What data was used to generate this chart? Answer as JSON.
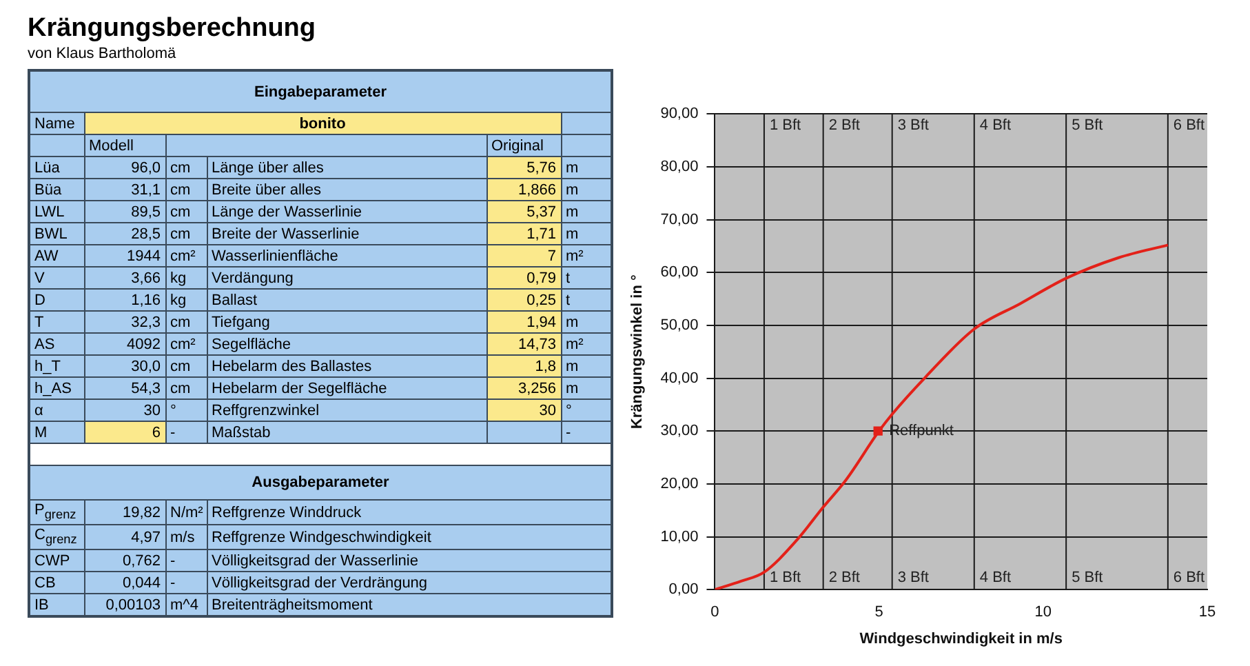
{
  "chart_data": [
    {
      "type": "other",
      "title": "Krängungsberechnung",
      "subtitle": "von Klaus Bartholomä",
      "annotations": [
        "Eingabeparameter",
        "Name",
        "bonito",
        "Modell",
        "Original",
        "Lüa",
        "96,0",
        "cm",
        "Länge über alles",
        "5,76",
        "m",
        "Büa",
        "31,1",
        "cm",
        "Breite über alles",
        "1,866",
        "m",
        "LWL",
        "89,5",
        "cm",
        "Länge der Wasserlinie",
        "5,37",
        "m",
        "BWL",
        "28,5",
        "cm",
        "Breite der Wasserlinie",
        "1,71",
        "m",
        "AW",
        "1944",
        "cm²",
        "Wasserlinienfläche",
        "7",
        "m²",
        "V",
        "3,66",
        "kg",
        "Verdängung",
        "0,79",
        "t",
        "D",
        "1,16",
        "kg",
        "Ballast",
        "0,25",
        "t",
        "T",
        "32,3",
        "cm",
        "Tiefgang",
        "1,94",
        "m",
        "AS",
        "4092",
        "cm²",
        "Segelfläche",
        "14,73",
        "m²",
        "h_T",
        "30,0",
        "cm",
        "Hebelarm des Ballastes",
        "1,8",
        "m",
        "h_AS",
        "54,3",
        "cm",
        "Hebelarm der Segelfläche",
        "3,256",
        "m",
        "α",
        "30",
        "°",
        "Reffgrenzwinkel",
        "30",
        "°",
        "M",
        "6",
        "-",
        "Maßstab",
        "-",
        "Ausgabeparameter",
        "P$_{grenz}$",
        "19,82",
        "N/m²",
        "Reffgrenze Winddruck",
        "C$_{grenz}$",
        "4,97",
        "m/s",
        "Reffgrenze Windgeschwindigkeit",
        "CWP",
        "0,762",
        "-",
        "Völligkeitsgrad der Wasserlinie",
        "CB",
        "0,044",
        "-",
        "Völligkeitsgrad der Verdrängung",
        "IB",
        "0,00103",
        "m^4",
        "Breitenträgheitsmoment"
      ]
    },
    {
      "type": "line",
      "xlabel": "Windgeschwindigkeit in m/s",
      "ylabel": "Krängungswinkel in °",
      "xlim": [
        0,
        15
      ],
      "xticks": [
        0,
        5,
        10,
        15
      ],
      "ylim": [
        0,
        90
      ],
      "yticks": [
        {
          "value": 0,
          "label": "0,00"
        },
        {
          "value": 10,
          "label": "10,00"
        },
        {
          "value": 20,
          "label": "20,00"
        },
        {
          "value": 30,
          "label": "30,00"
        },
        {
          "value": 40,
          "label": "40,00"
        },
        {
          "value": 50,
          "label": "50,00"
        },
        {
          "value": 60,
          "label": "60,00"
        },
        {
          "value": 70,
          "label": "70,00"
        },
        {
          "value": 80,
          "label": "80,00"
        },
        {
          "value": 90,
          "label": "90,00"
        }
      ],
      "grid": "y",
      "legend": false,
      "ref_lines": [
        {
          "axis": "x",
          "value": 1.5,
          "label": "1 Bft"
        },
        {
          "axis": "x",
          "value": 3.3,
          "label": "2 Bft"
        },
        {
          "axis": "x",
          "value": 5.4,
          "label": "3 Bft"
        },
        {
          "axis": "x",
          "value": 7.9,
          "label": "4 Bft"
        },
        {
          "axis": "x",
          "value": 10.7,
          "label": "5 Bft"
        },
        {
          "axis": "x",
          "value": 13.8,
          "label": "6 Bft"
        }
      ],
      "annotations": [
        {
          "text": "Reffpunkt",
          "x": 4.97,
          "y": 30
        }
      ],
      "series": [
        {
          "type": "line",
          "color": "#e32119",
          "marker": "none",
          "x": [
            0,
            0.8,
            1.5,
            2.5,
            3.3,
            4,
            5,
            5.4,
            6.4,
            7.9,
            9.3,
            10.7,
            12.3,
            13.8
          ],
          "values": [
            0,
            1.6,
            3.3,
            9.4,
            15.6,
            20.8,
            30,
            33.2,
            40.1,
            49.3,
            54.1,
            58.9,
            62.8,
            65.2
          ]
        },
        {
          "type": "scatter",
          "color": "#e32119",
          "marker": "square",
          "x": [
            4.97
          ],
          "values": [
            30
          ]
        }
      ]
    }
  ]
}
